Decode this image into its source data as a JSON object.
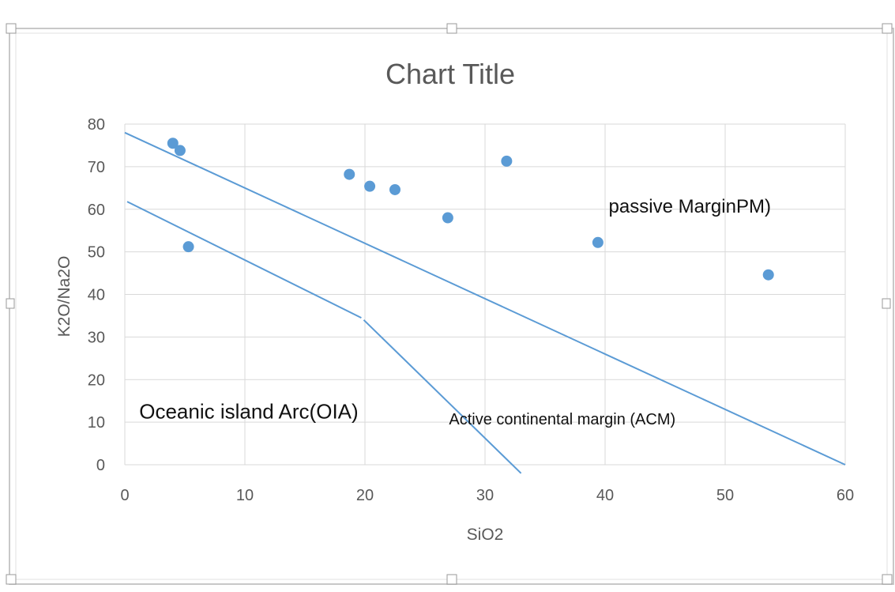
{
  "chart_data": {
    "type": "scatter",
    "title": "Chart Title",
    "xlabel": "SiO2",
    "ylabel": "K2O/Na2O",
    "xlim": [
      0,
      60
    ],
    "ylim": [
      0,
      80
    ],
    "xticks": [
      "0",
      "10",
      "20",
      "30",
      "40",
      "50",
      "60"
    ],
    "yticks": [
      "0",
      "10",
      "20",
      "30",
      "40",
      "50",
      "60",
      "70",
      "80"
    ],
    "grid": true,
    "legend": "none",
    "series": [
      {
        "color": "#5b9bd5",
        "points": [
          {
            "x": 4.0,
            "y": 75.5
          },
          {
            "x": 4.6,
            "y": 73.8
          },
          {
            "x": 5.3,
            "y": 51.2
          },
          {
            "x": 18.7,
            "y": 68.2
          },
          {
            "x": 20.4,
            "y": 65.4
          },
          {
            "x": 22.5,
            "y": 64.6
          },
          {
            "x": 26.9,
            "y": 58.0
          },
          {
            "x": 31.8,
            "y": 71.3
          },
          {
            "x": 39.4,
            "y": 52.2
          },
          {
            "x": 53.6,
            "y": 44.6
          }
        ]
      }
    ],
    "lines": [
      {
        "color": "#5b9bd5",
        "points": [
          {
            "x": 0.0,
            "y": 78.0
          },
          {
            "x": 60.0,
            "y": 0.0
          }
        ]
      },
      {
        "color": "#5b9bd5",
        "points": [
          {
            "x": 0.2,
            "y": 61.8
          },
          {
            "x": 19.7,
            "y": 34.5
          }
        ]
      },
      {
        "color": "#5b9bd5",
        "points": [
          {
            "x": 19.9,
            "y": 34.0
          },
          {
            "x": 33.0,
            "y": -2.0
          }
        ]
      }
    ],
    "annotations": [
      {
        "text": "passive MarginPM)",
        "x": 40.3,
        "y": 59.2
      },
      {
        "text": "Oceanic island Arc(OIA)",
        "x": 1.2,
        "y": 10.9
      },
      {
        "text": "Active continental margin (ACM)",
        "x": 27.0,
        "y": 9.5
      }
    ]
  }
}
